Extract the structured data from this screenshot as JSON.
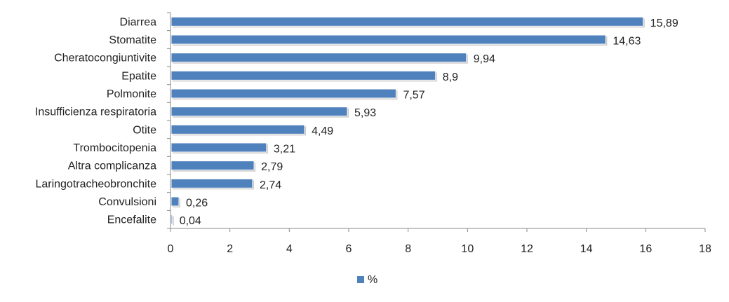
{
  "chart_data": {
    "type": "bar",
    "orientation": "horizontal",
    "categories": [
      "Diarrea",
      "Stomatite",
      "Cheratocongiuntivite",
      "Epatite",
      "Polmonite",
      "Insufficienza respiratoria",
      "Otite",
      "Trombocitopenia",
      "Altra complicanza",
      "Laringotracheobronchite",
      "Convulsioni",
      "Encefalite"
    ],
    "series": [
      {
        "name": "%",
        "values": [
          15.89,
          14.63,
          9.94,
          8.9,
          7.57,
          5.93,
          4.49,
          3.21,
          2.79,
          2.74,
          0.26,
          0.04
        ],
        "labels": [
          "15,89",
          "14,63",
          "9,94",
          "8,9",
          "7,57",
          "5,93",
          "4,49",
          "3,21",
          "2,79",
          "2,74",
          "0,26",
          "0,04"
        ]
      }
    ],
    "xlim": [
      0,
      18
    ],
    "xticks": [
      0,
      2,
      4,
      6,
      8,
      10,
      12,
      14,
      16,
      18
    ],
    "grid": false,
    "legend": {
      "position": "bottom",
      "entries": [
        "%"
      ]
    },
    "colors": {
      "bar": "#4F81BD",
      "axis": "#898989"
    }
  }
}
